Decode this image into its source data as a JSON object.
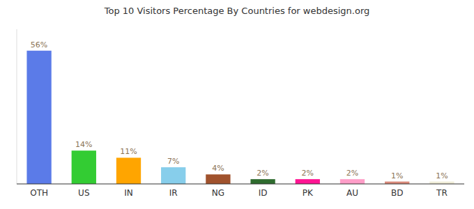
{
  "chart_data": {
    "type": "bar",
    "title": "Top 10 Visitors Percentage By Countries for webdesign.org",
    "categories": [
      "OTH",
      "US",
      "IN",
      "IR",
      "NG",
      "ID",
      "PK",
      "AU",
      "BD",
      "TR"
    ],
    "values": [
      56,
      14,
      11,
      7,
      4,
      2,
      2,
      2,
      1,
      1
    ],
    "value_labels": [
      "56%",
      "14%",
      "11%",
      "7%",
      "4%",
      "2%",
      "2%",
      "2%",
      "1%",
      "1%"
    ],
    "colors": [
      "#5B7BE8",
      "#33CC33",
      "#FFA500",
      "#87CEEB",
      "#A0522D",
      "#2E6B2E",
      "#FF1493",
      "#FF9EC8",
      "#D9897A",
      "#F0EDD8"
    ],
    "ylim": [
      0,
      65
    ],
    "data_labels": true,
    "tick_labels": "x",
    "grid": false
  }
}
